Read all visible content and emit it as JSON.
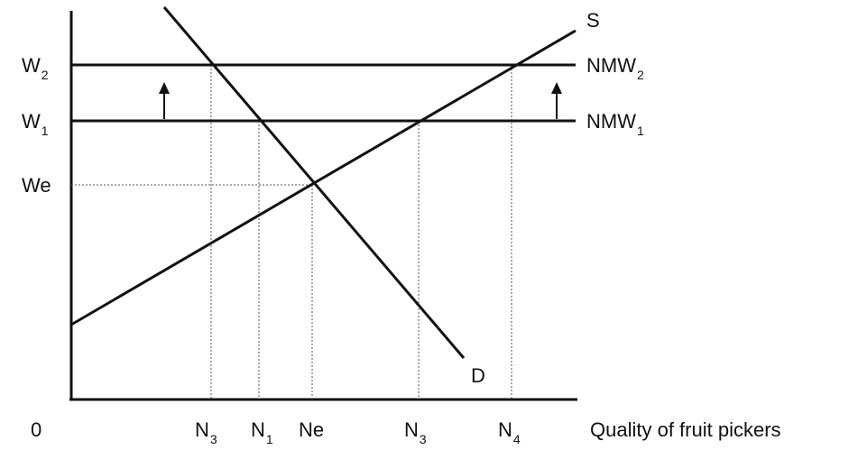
{
  "labels": {
    "origin": "0",
    "x_axis": "Quality of fruit pickers",
    "supply": "S",
    "demand": "D",
    "w2": {
      "main": "W",
      "sub": "2"
    },
    "w1": {
      "main": "W",
      "sub": "1"
    },
    "we": "We",
    "nmw2": {
      "main": "NMW",
      "sub": "2"
    },
    "nmw1": {
      "main": "NMW",
      "sub": "1"
    },
    "n3_left": {
      "main": "N",
      "sub": "3"
    },
    "n1": {
      "main": "N",
      "sub": "1"
    },
    "ne": "Ne",
    "n3_right": {
      "main": "N",
      "sub": "3"
    },
    "n4": {
      "main": "N",
      "sub": "4"
    }
  }
}
